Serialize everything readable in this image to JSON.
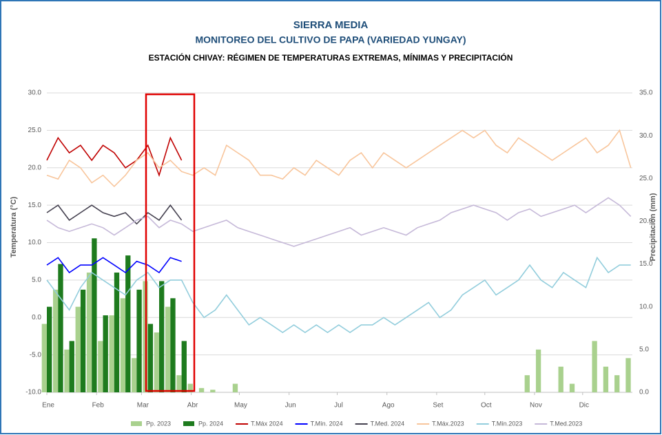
{
  "chart_data": {
    "type": "combo",
    "title": "SIERRA MEDIA",
    "subtitle": "MONITOREO DEL CULTIVO DE PAPA (VARIEDAD YUNGAY)",
    "subtitle2": "ESTACIÓN CHIVAY: RÉGIMEN DE TEMPERATURAS EXTREMAS, MÍNIMAS Y PRECIPITACIÓN",
    "y_label": "Temperatura (°C)",
    "y2_label": "Precipitación (mm)",
    "x": [
      1,
      8,
      15,
      22,
      29,
      36,
      43,
      50,
      57,
      64,
      71,
      78,
      85,
      92,
      99,
      106,
      113,
      120,
      127,
      134,
      141,
      148,
      155,
      162,
      169,
      176,
      183,
      190,
      197,
      204,
      211,
      218,
      225,
      232,
      239,
      246,
      253,
      260,
      267,
      274,
      281,
      288,
      295,
      302,
      309,
      316,
      323,
      330,
      337,
      344,
      351,
      358,
      365
    ],
    "xlim": [
      1,
      366
    ],
    "xticks": [
      {
        "value": 1,
        "label": "Ene"
      },
      {
        "value": 32,
        "label": "Feb"
      },
      {
        "value": 60,
        "label": "Mar"
      },
      {
        "value": 91,
        "label": "Abr"
      },
      {
        "value": 121,
        "label": "May"
      },
      {
        "value": 152,
        "label": "Jun"
      },
      {
        "value": 182,
        "label": "Jul"
      },
      {
        "value": 213,
        "label": "Ago"
      },
      {
        "value": 244,
        "label": "Set"
      },
      {
        "value": 274,
        "label": "Oct"
      },
      {
        "value": 305,
        "label": "Nov"
      },
      {
        "value": 335,
        "label": "Dic"
      }
    ],
    "ylim": [
      -10,
      30
    ],
    "yticks": [
      {
        "value": -10,
        "label": "-10.0"
      },
      {
        "value": -5,
        "label": "-5.0"
      },
      {
        "value": 0,
        "label": "0.0"
      },
      {
        "value": 5,
        "label": "5.0"
      },
      {
        "value": 10,
        "label": "10.0"
      },
      {
        "value": 15,
        "label": "15.0"
      },
      {
        "value": 20,
        "label": "20.0"
      },
      {
        "value": 25,
        "label": "25.0"
      },
      {
        "value": 30,
        "label": "30.0"
      }
    ],
    "y2lim": [
      0,
      35
    ],
    "y2ticks": [
      {
        "value": 0,
        "label": "0.0"
      },
      {
        "value": 5,
        "label": "5.0"
      },
      {
        "value": 10,
        "label": "10.0"
      },
      {
        "value": 15,
        "label": "15.0"
      },
      {
        "value": 20,
        "label": "20.0"
      },
      {
        "value": 25,
        "label": "25.0"
      },
      {
        "value": 30,
        "label": "30.0"
      },
      {
        "value": 35,
        "label": "35.0"
      }
    ],
    "grid": true,
    "series": [
      {
        "name": "Pp. 2023",
        "type": "bar",
        "axis": "y2",
        "color": "#a9d18e",
        "values": [
          8,
          12,
          5,
          10,
          14,
          6,
          9,
          11,
          4,
          13,
          7,
          10,
          2,
          1,
          0.5,
          0.3,
          0,
          1,
          0,
          0,
          0,
          0,
          0,
          0,
          0,
          0,
          0,
          0,
          0,
          0,
          0,
          0,
          0,
          0,
          0,
          0,
          0,
          0,
          0,
          0,
          0,
          0,
          0,
          2,
          5,
          0,
          3,
          1,
          0,
          6,
          3,
          2,
          4
        ]
      },
      {
        "name": "Pp. 2024",
        "type": "bar",
        "axis": "y2",
        "color": "#1e7b1e",
        "values": [
          10,
          15,
          6,
          12,
          18,
          9,
          14,
          16,
          12,
          8,
          13,
          11,
          6,
          null,
          null,
          null,
          null,
          null,
          null,
          null,
          null,
          null,
          null,
          null,
          null,
          null,
          null,
          null,
          null,
          null,
          null,
          null,
          null,
          null,
          null,
          null,
          null,
          null,
          null,
          null,
          null,
          null,
          null,
          null,
          null,
          null,
          null,
          null,
          null,
          null,
          null,
          null,
          null
        ]
      },
      {
        "name": "T.Máx 2024",
        "type": "line",
        "color": "#c00000",
        "values": [
          21,
          24,
          22,
          23,
          21,
          23,
          22,
          20,
          21,
          23,
          19,
          24,
          21,
          null,
          null,
          null,
          null,
          null,
          null,
          null,
          null,
          null,
          null,
          null,
          null,
          null,
          null,
          null,
          null,
          null,
          null,
          null,
          null,
          null,
          null,
          null,
          null,
          null,
          null,
          null,
          null,
          null,
          null,
          null,
          null,
          null,
          null,
          null,
          null,
          null,
          null,
          null,
          null
        ]
      },
      {
        "name": "T.Mín. 2024",
        "type": "line",
        "color": "#0000ff",
        "values": [
          7,
          8,
          6,
          7,
          7,
          8,
          7,
          6,
          7.5,
          7,
          6,
          8,
          7.5,
          null,
          null,
          null,
          null,
          null,
          null,
          null,
          null,
          null,
          null,
          null,
          null,
          null,
          null,
          null,
          null,
          null,
          null,
          null,
          null,
          null,
          null,
          null,
          null,
          null,
          null,
          null,
          null,
          null,
          null,
          null,
          null,
          null,
          null,
          null,
          null,
          null,
          null,
          null,
          null
        ]
      },
      {
        "name": "T.Med. 2024",
        "type": "line",
        "color": "#44404f",
        "values": [
          14,
          15,
          13,
          14,
          15,
          14,
          13.5,
          14,
          12.5,
          14,
          13,
          15,
          13,
          null,
          null,
          null,
          null,
          null,
          null,
          null,
          null,
          null,
          null,
          null,
          null,
          null,
          null,
          null,
          null,
          null,
          null,
          null,
          null,
          null,
          null,
          null,
          null,
          null,
          null,
          null,
          null,
          null,
          null,
          null,
          null,
          null,
          null,
          null,
          null,
          null,
          null,
          null,
          null
        ]
      },
      {
        "name": "T.Máx.2023",
        "type": "line",
        "color": "#f8c59b",
        "values": [
          19,
          18.5,
          21,
          20,
          18,
          19,
          17.5,
          19,
          21,
          22,
          20,
          21,
          19.5,
          19,
          20,
          19,
          23,
          22,
          21,
          19,
          19,
          18.5,
          20,
          19,
          21,
          20,
          19,
          21,
          22,
          20,
          22,
          21,
          20,
          21,
          22,
          23,
          24,
          25,
          24,
          25,
          23,
          22,
          24,
          23,
          22,
          21,
          22,
          23,
          24,
          22,
          23,
          25,
          20
        ]
      },
      {
        "name": "T.Mín.2023",
        "type": "line",
        "color": "#92cddc",
        "values": [
          5,
          3,
          1,
          4,
          6,
          5,
          4,
          3,
          5,
          6,
          4,
          5,
          5,
          2,
          0,
          1,
          3,
          1,
          -1,
          0,
          -1,
          -2,
          -1,
          -2,
          -1,
          -2,
          -1,
          -2,
          -1,
          -1,
          0,
          -1,
          0,
          1,
          2,
          0,
          1,
          3,
          4,
          5,
          3,
          4,
          5,
          7,
          5,
          4,
          6,
          5,
          4,
          8,
          6,
          7,
          7
        ]
      },
      {
        "name": "T.Med.2023",
        "type": "line",
        "color": "#c5b8d8",
        "values": [
          13,
          12,
          11.5,
          12,
          12.5,
          12,
          11,
          12,
          13,
          13.5,
          12,
          13,
          12.5,
          11.5,
          12,
          12.5,
          13,
          12,
          11.5,
          11,
          10.5,
          10,
          9.5,
          10,
          10.5,
          11,
          11.5,
          12,
          11,
          11.5,
          12,
          11.5,
          11,
          12,
          12.5,
          13,
          14,
          14.5,
          15,
          14.5,
          14,
          13,
          14,
          14.5,
          13.5,
          14,
          14.5,
          15,
          14,
          15,
          16,
          15,
          13.5
        ]
      }
    ]
  }
}
